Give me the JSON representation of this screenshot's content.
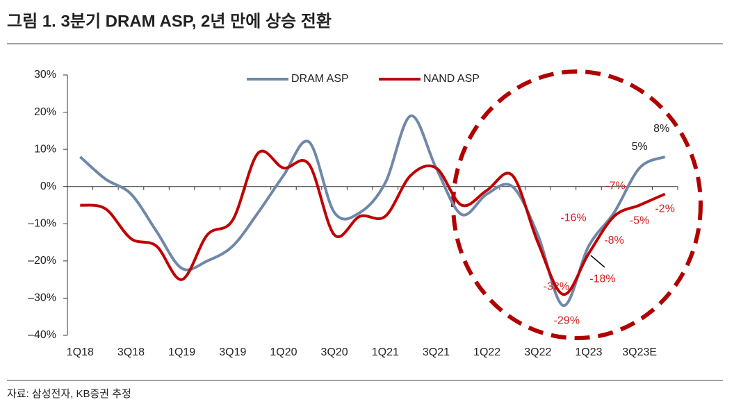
{
  "chart_data": {
    "type": "line",
    "title": "그림 1. 3분기 DRAM ASP, 2년 만에 상승 전환",
    "source": "자료: 삼성전자, KB증권 추정",
    "categories": [
      "1Q18",
      null,
      "3Q18",
      null,
      "1Q19",
      null,
      "3Q19",
      null,
      "1Q20",
      null,
      "3Q20",
      null,
      "1Q21",
      null,
      "3Q21",
      null,
      "1Q22",
      null,
      "3Q22",
      null,
      "1Q23",
      null,
      "3Q23E",
      null
    ],
    "series": [
      {
        "name": "DRAM ASP",
        "color": "#6f88a8",
        "values": [
          8,
          2,
          -2,
          -12,
          -22,
          -20,
          -16,
          -7,
          3,
          12,
          -7,
          -7,
          1,
          19,
          5,
          -7.5,
          -2,
          0,
          -13,
          -32,
          -16,
          -7,
          5,
          8
        ],
        "value_labels": [
          null,
          null,
          null,
          null,
          null,
          null,
          null,
          null,
          null,
          null,
          null,
          null,
          null,
          null,
          null,
          null,
          null,
          null,
          null,
          "-32%",
          "-16%",
          "-7%",
          "5%",
          "8%"
        ]
      },
      {
        "name": "NAND ASP",
        "color": "#c00000",
        "values": [
          -5,
          -6,
          -14,
          -16,
          -25,
          -13,
          -9,
          9,
          5,
          6,
          -13,
          -8,
          -8,
          3,
          5,
          -5,
          -1,
          3,
          -15,
          -29,
          -18,
          -8,
          -5,
          -2
        ],
        "value_labels": [
          null,
          null,
          null,
          null,
          null,
          null,
          null,
          null,
          null,
          null,
          null,
          null,
          null,
          null,
          null,
          null,
          null,
          null,
          null,
          "-29%",
          "-18%",
          "-8%",
          "-5%",
          "-2%"
        ]
      }
    ],
    "ylim": [
      -40,
      30
    ],
    "yticks": [
      {
        "value": -40,
        "label": "–40%"
      },
      {
        "value": -30,
        "label": "–30%"
      },
      {
        "value": -20,
        "label": "–20%"
      },
      {
        "value": -10,
        "label": "–10%"
      },
      {
        "value": 0,
        "label": "0%"
      },
      {
        "value": 10,
        "label": "10%"
      },
      {
        "value": 20,
        "label": "20%"
      },
      {
        "value": 30,
        "label": "30%"
      }
    ],
    "legend": "top"
  }
}
